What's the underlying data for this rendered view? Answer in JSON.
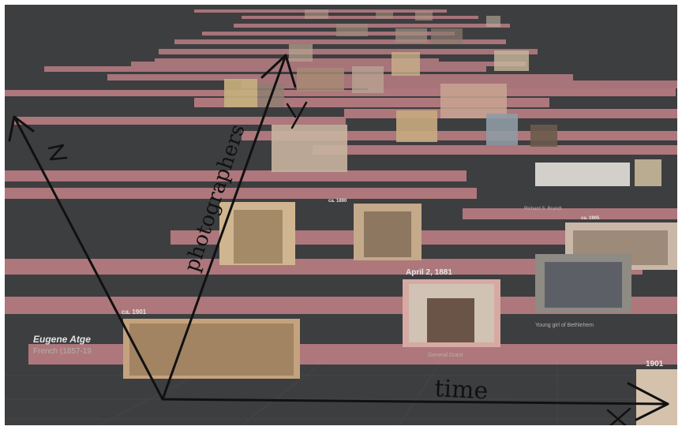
{
  "colors": {
    "background": "#3d3e40",
    "bar": "#c9868c",
    "photo_frame": "#d7a9a3",
    "ink": "#111111",
    "label": "#e4e4e4"
  },
  "labels": {
    "date_april": "April 2, 1881",
    "date_1901": "1901",
    "date_ca_1901": "ca. 1901",
    "date_ca_1890": "ca. 1890",
    "date_ca_1905": "ca. 1905",
    "photographer_name": "Eugene Atge",
    "photographer_sub": "French (1857-19",
    "richard": "Richard S. Brandt",
    "young_girl": "Young girl of Bethlehem",
    "general_grant": "General Grant"
  },
  "annotations": {
    "z_axis": "Z",
    "y_axis": "Y",
    "x_axis": "X",
    "photographers": "photographers",
    "time": "time"
  }
}
